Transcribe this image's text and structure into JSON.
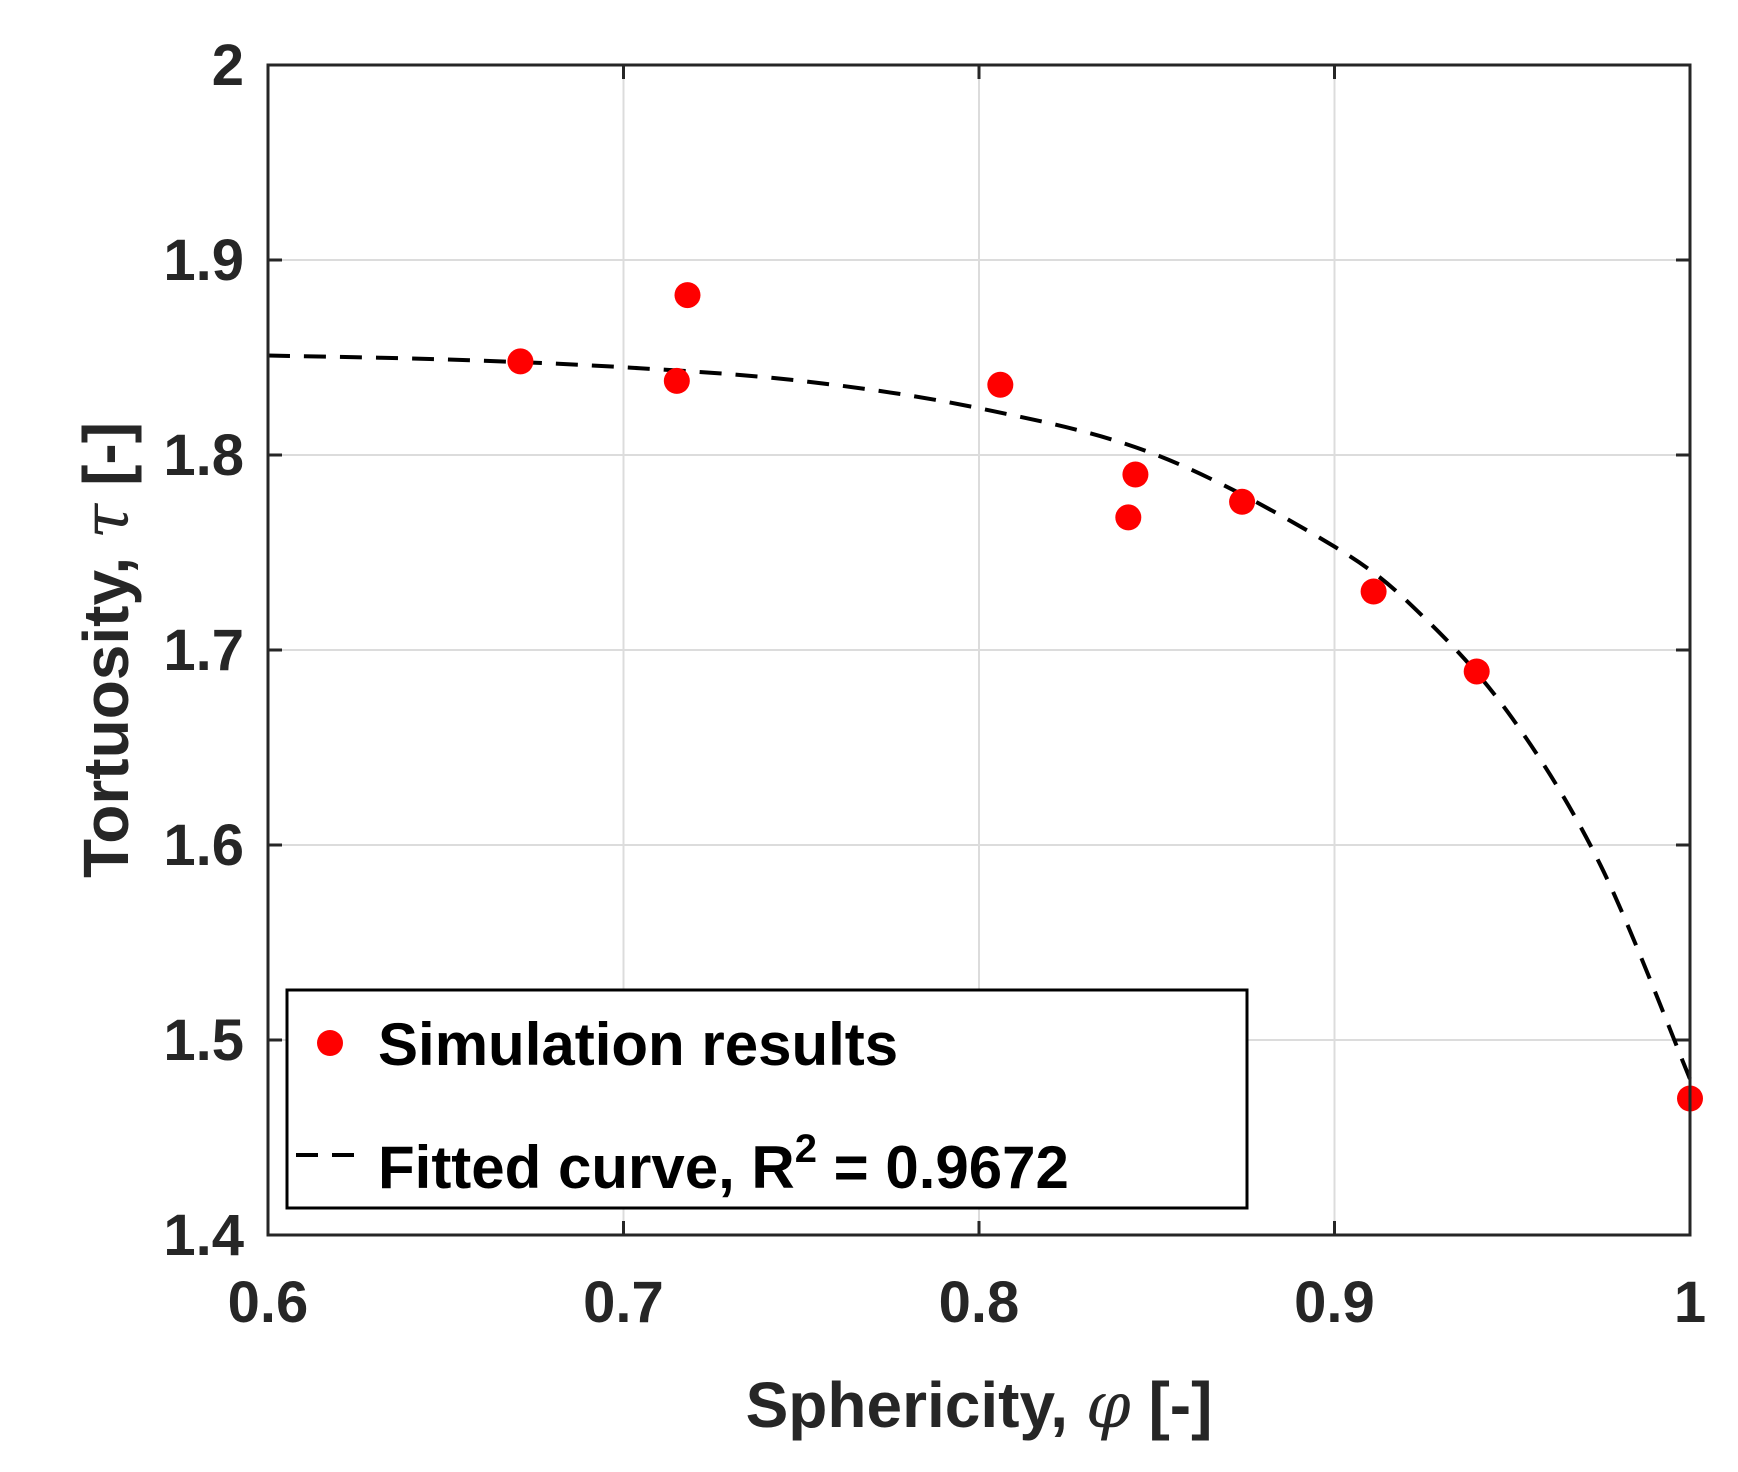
{
  "chart_data": {
    "type": "scatter",
    "title": "",
    "xlabel_prefix": "Sphericity, ",
    "xlabel_symbol": "φ",
    "xlabel_suffix": " [-]",
    "ylabel_prefix": "Tortuosity, ",
    "ylabel_symbol": "τ",
    "ylabel_suffix": " [-]",
    "xlim": [
      0.6,
      1.0
    ],
    "ylim": [
      1.4,
      2.0
    ],
    "xticks": [
      0.6,
      0.7,
      0.8,
      0.9,
      1.0
    ],
    "xtick_labels": [
      "0.6",
      "0.7",
      "0.8",
      "0.9",
      "1"
    ],
    "yticks": [
      1.4,
      1.5,
      1.6,
      1.7,
      1.8,
      1.9,
      2.0
    ],
    "ytick_labels": [
      "1.4",
      "1.5",
      "1.6",
      "1.7",
      "1.8",
      "1.9",
      "2"
    ],
    "grid": true,
    "legend_position": "bottom-left",
    "series": [
      {
        "name": "Simulation results",
        "kind": "scatter",
        "color": "#ff0000",
        "x": [
          0.671,
          0.715,
          0.718,
          0.806,
          0.842,
          0.844,
          0.874,
          0.911,
          0.94,
          1.0
        ],
        "y": [
          1.848,
          1.838,
          1.882,
          1.836,
          1.768,
          1.79,
          1.776,
          1.73,
          1.689,
          1.47
        ]
      },
      {
        "name": "Fitted curve, R",
        "superscript": "2",
        "name_suffix": " = 0.9672",
        "kind": "line",
        "style": "dashed",
        "color": "#000000",
        "x": [
          0.6,
          0.65,
          0.7,
          0.75,
          0.8,
          0.85,
          0.9,
          0.925,
          0.95,
          0.975,
          1.0
        ],
        "y": [
          1.851,
          1.849,
          1.845,
          1.838,
          1.824,
          1.8,
          1.753,
          1.717,
          1.665,
          1.589,
          1.48
        ]
      }
    ]
  }
}
